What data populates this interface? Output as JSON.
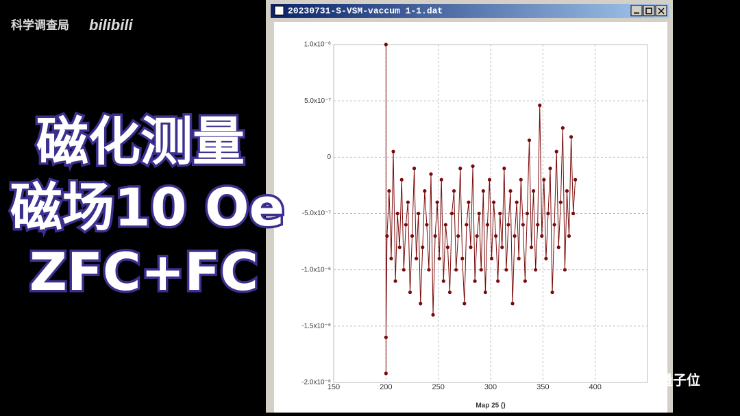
{
  "watermark": {
    "channel": "科学调查局",
    "logo": "bilibili",
    "corner": "量子位"
  },
  "caption": [
    "磁化测量",
    "磁场10 Oe",
    "ZFC+FC"
  ],
  "window": {
    "title": "20230731-S-VSM-vaccum 1-1.dat"
  },
  "chart_data": {
    "type": "line",
    "xlabel": "Map 25 ()",
    "color": "#7a0a0a",
    "grid": true,
    "xlim": [
      150,
      450
    ],
    "xticks": [
      150,
      200,
      250,
      300,
      350,
      400
    ],
    "ylim": [
      -2e-06,
      1e-06
    ],
    "yticks": [
      {
        "value": -2e-06,
        "label": "-2.0x10⁻⁶"
      },
      {
        "value": -1.5e-06,
        "label": "-1.5x10⁻⁶"
      },
      {
        "value": -1e-06,
        "label": "-1.0x10⁻⁶"
      },
      {
        "value": -5e-07,
        "label": "-5.0x10⁻⁷"
      },
      0,
      {
        "value": 5e-07,
        "label": "5.0x10⁻⁷"
      },
      {
        "value": 1e-06,
        "label": "1.0x10⁻⁶"
      }
    ],
    "x": [
      200,
      200,
      200,
      201,
      203,
      205,
      207,
      209,
      211,
      213,
      215,
      217,
      219,
      221,
      223,
      225,
      227,
      229,
      231,
      233,
      235,
      237,
      239,
      241,
      243,
      245,
      247,
      249,
      251,
      253,
      255,
      257,
      259,
      261,
      263,
      265,
      267,
      269,
      271,
      273,
      275,
      277,
      279,
      281,
      283,
      285,
      287,
      289,
      291,
      293,
      295,
      297,
      299,
      301,
      303,
      305,
      307,
      309,
      311,
      313,
      315,
      317,
      319,
      321,
      323,
      325,
      327,
      329,
      331,
      333,
      335,
      337,
      339,
      341,
      343,
      345,
      347,
      349,
      351,
      353,
      355,
      357,
      359,
      361,
      363,
      365,
      367,
      369,
      371,
      373,
      375,
      377,
      379,
      381
    ],
    "values": [
      1e-06,
      -1.92e-06,
      -1.6e-06,
      -7e-07,
      -3e-07,
      -9e-07,
      5e-08,
      -1.1e-06,
      -5e-07,
      -8e-07,
      -2e-07,
      -1e-06,
      -6e-07,
      -4e-07,
      -1.2e-06,
      -7e-07,
      -1e-07,
      -9e-07,
      -5e-07,
      -1.3e-06,
      -8e-07,
      -3e-07,
      -6e-07,
      -1e-06,
      -1.5e-07,
      -1.4e-06,
      -7e-07,
      -4e-07,
      -9e-07,
      -2e-07,
      -1.1e-06,
      -6e-07,
      -8e-07,
      -1.2e-06,
      -5e-07,
      -3e-07,
      -1e-06,
      -7e-07,
      -1e-07,
      -9e-07,
      -1.3e-06,
      -6e-07,
      -4e-07,
      -8e-07,
      -8e-08,
      -1.1e-06,
      -7e-07,
      -5e-07,
      -1e-06,
      -3e-07,
      -1.2e-06,
      -6e-07,
      -2e-07,
      -9e-07,
      -4e-07,
      -7e-07,
      -1.1e-06,
      -5e-07,
      -8e-07,
      -1e-07,
      -1e-06,
      -6e-07,
      -3e-07,
      -1.3e-06,
      -7e-07,
      -4e-07,
      -9e-07,
      -2e-07,
      -6e-07,
      -1.1e-06,
      -5e-07,
      1.5e-07,
      -8e-07,
      -3e-07,
      -1e-06,
      -6e-07,
      4.6e-07,
      -7e-07,
      -2e-07,
      -9e-07,
      -5e-07,
      -1e-07,
      -1.2e-06,
      -6e-07,
      5e-08,
      -8e-07,
      -4e-07,
      2.6e-07,
      -1e-06,
      -3e-07,
      -7e-07,
      1.8e-07,
      -5e-07,
      -2e-07
    ]
  }
}
